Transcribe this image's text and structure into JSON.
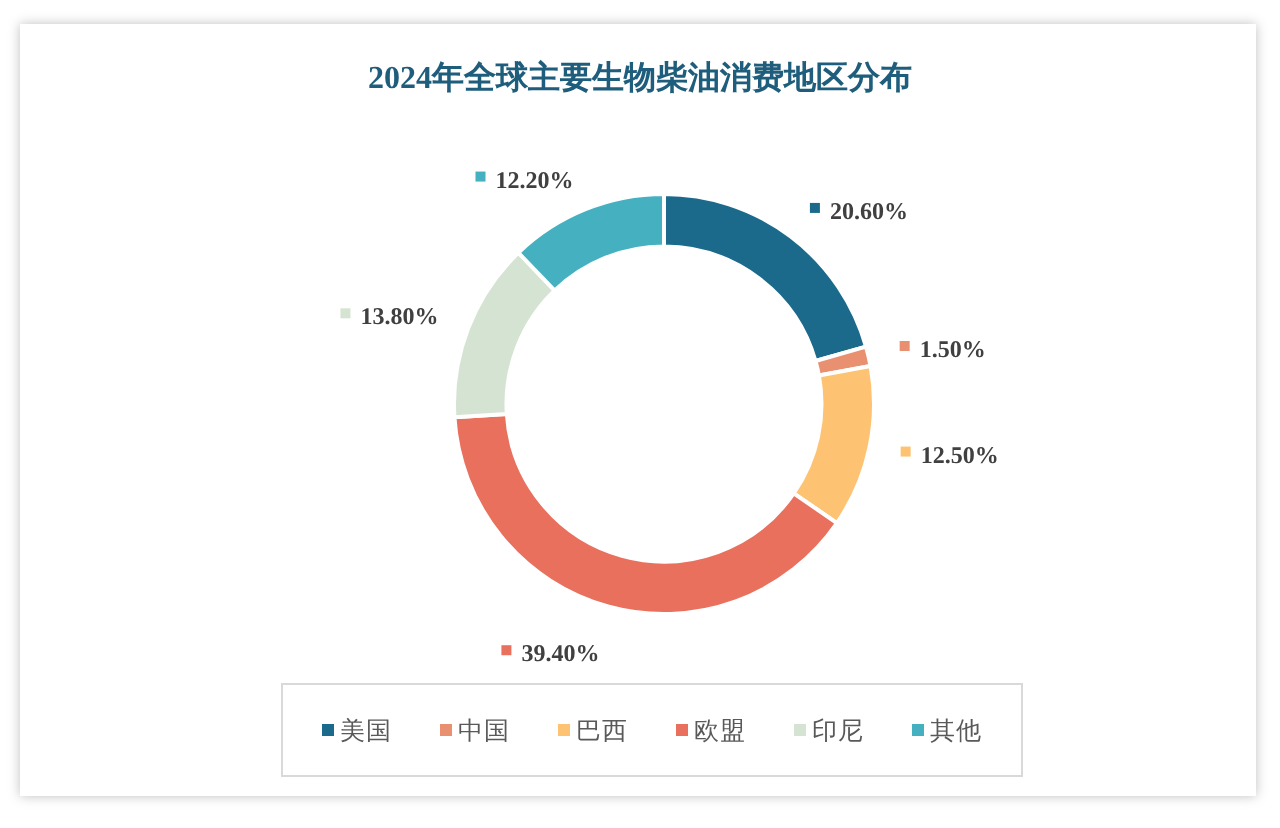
{
  "chart_data": {
    "type": "donut",
    "title": "2024年全球主要生物柴油消费地区分布",
    "categories": [
      "美国",
      "中国",
      "巴西",
      "欧盟",
      "印尼",
      "其他"
    ],
    "values": [
      20.6,
      1.5,
      12.5,
      39.4,
      13.8,
      12.2
    ],
    "colors": [
      "#1b6a8c",
      "#e99071",
      "#fdc373",
      "#e8705d",
      "#d5e4d2",
      "#45b1c0"
    ],
    "value_labels": [
      "20.60%",
      "1.50%",
      "12.50%",
      "39.40%",
      "13.80%",
      "12.20%"
    ],
    "legend": "bottom"
  }
}
